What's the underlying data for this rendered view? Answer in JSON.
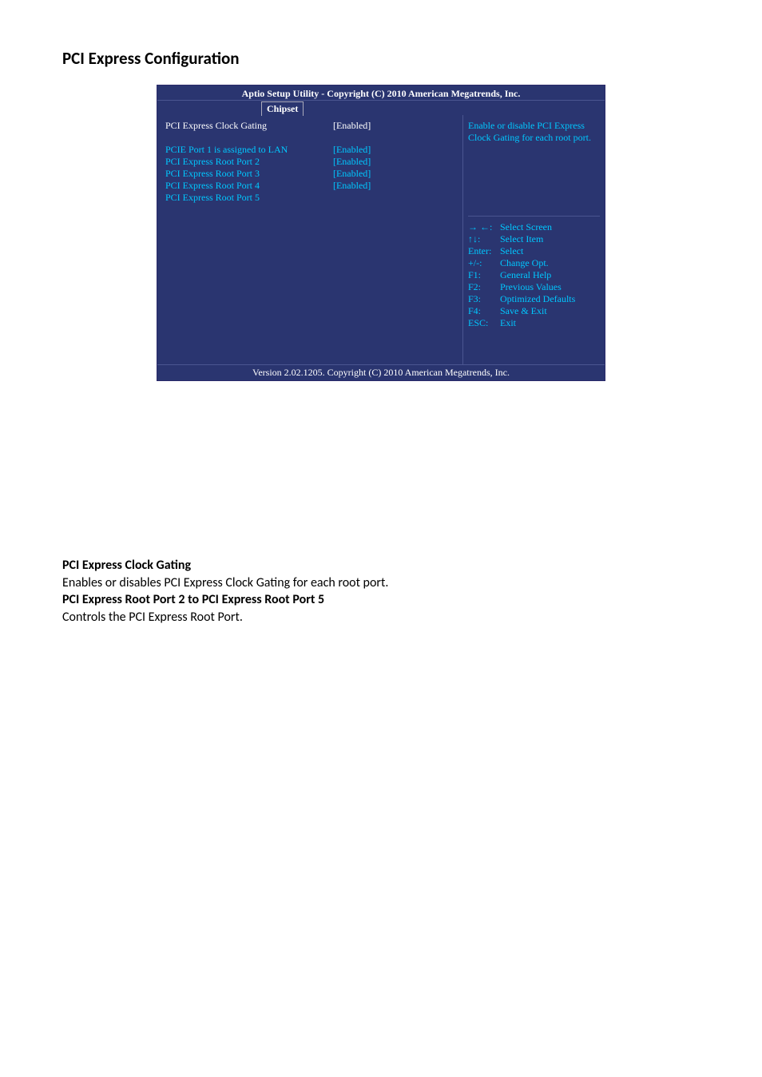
{
  "page": {
    "section_title": "PCI Express Configuration"
  },
  "bios": {
    "header_title": "Aptio Setup Utility - Copyright (C) 2010 American Megatrends, Inc.",
    "tab_label": "Chipset",
    "footer": "Version 2.02.1205. Copyright (C) 2010 American Megatrends, Inc.",
    "colors": {
      "bg": "#2a3570",
      "text_highlight": "#ffffff",
      "text_normal": "#00c8ff",
      "border": "#4a5590"
    },
    "settings": [
      {
        "label": "PCI Express Clock Gating",
        "value": "[Enabled]",
        "selected": true
      },
      {
        "label": "PCIE Port 1 is assigned to LAN",
        "value": "",
        "selected": false
      },
      {
        "label": "PCI Express Root Port 2",
        "value": "[Enabled]",
        "selected": false
      },
      {
        "label": "PCI Express Root Port 3",
        "value": "[Enabled]",
        "selected": false
      },
      {
        "label": "PCI Express Root Port 4",
        "value": "[Enabled]",
        "selected": false
      },
      {
        "label": "PCI Express Root Port 5",
        "value": "[Enabled]",
        "selected": false
      }
    ],
    "help": "Enable or disable PCI Express Clock Gating for each root port.",
    "keys": [
      {
        "k": "→ ←:",
        "v": "Select Screen"
      },
      {
        "k": "↑↓:",
        "v": "Select Item"
      },
      {
        "k": "Enter:",
        "v": "Select"
      },
      {
        "k": "+/-:",
        "v": "Change Opt."
      },
      {
        "k": "F1:",
        "v": "General Help"
      },
      {
        "k": "F2:",
        "v": "Previous Values"
      },
      {
        "k": "F3:",
        "v": "Optimized Defaults"
      },
      {
        "k": "F4:",
        "v": "Save & Exit"
      },
      {
        "k": "ESC:",
        "v": "Exit"
      }
    ]
  },
  "description": {
    "h1": "PCI Express Clock Gating",
    "p1": "Enables or disables PCI Express Clock Gating for each root port.",
    "h2": "PCI Express Root Port 2 to PCI Express Root Port 5",
    "p2": "Controls the PCI Express Root Port."
  }
}
